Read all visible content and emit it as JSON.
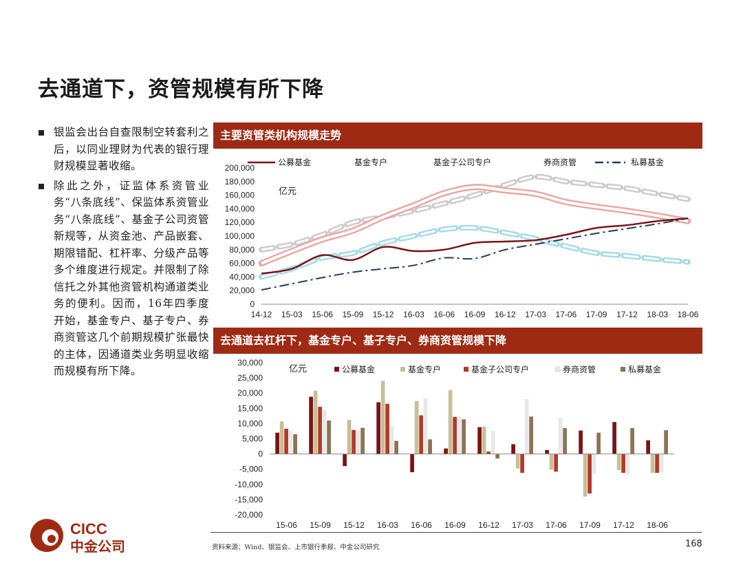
{
  "slide": {
    "title": "去通道下，资管规模有所下降",
    "bullets": [
      "银监会出台自查限制空转套利之后，以同业理财为代表的银行理财规模显著收缩。",
      "除此之外，证监体系资管业务“八条底线”、保监体系资管业务“八条底线”、基金子公司资管新规等，从资金池、产品嵌套、期限错配、杠杆率、分级产品等多个维度进行规定。并限制了除信托之外其他资管机构通道类业务的便利。因而，16年四季度开始，基金专户、基子专户、券商资管这几个前期规模扩张最快的主体，因通道类业务明显收缩而规模有所下降。"
    ],
    "source": "资料来源：Wind、银监会、上市银行季报、中金公司研究",
    "page_number": "168",
    "logo": {
      "text_en": "CICC",
      "text_cn": "中金公司"
    },
    "colors": {
      "header": "#9e2a14",
      "gongmu": "#7a1416",
      "jijinzhuanhu": "#c8bf97",
      "zigongsi": "#b33a2a",
      "quanshang": "#e8e8e8",
      "simu": "#8b7355",
      "simu_line": "#23395b",
      "jijinzhuanhu_line": "#e8a8a4",
      "zigongsi_line": "#a6dbe8",
      "quanshang_line": "#cccccc"
    }
  },
  "chart_data": [
    {
      "type": "line",
      "header": "主要资管类机构规模走势",
      "unit_label": "亿元",
      "x": [
        "14-12",
        "15-03",
        "15-06",
        "15-09",
        "15-12",
        "16-03",
        "16-06",
        "16-09",
        "16-12",
        "17-03",
        "17-06",
        "17-09",
        "17-12",
        "18-03",
        "18-06"
      ],
      "ylim": [
        0,
        200000
      ],
      "yticks": [
        "0",
        "20,000",
        "40,000",
        "60,000",
        "80,000",
        "100,000",
        "120,000",
        "140,000",
        "160,000",
        "180,000",
        "200,000"
      ],
      "legend_placement": "top",
      "series": [
        {
          "name": "公募基金",
          "values": [
            45000,
            52000,
            72000,
            65000,
            84000,
            78000,
            80000,
            90000,
            92000,
            94000,
            102000,
            112000,
            116000,
            122000,
            126000
          ]
        },
        {
          "name": "基金专户",
          "values": [
            60000,
            78000,
            95000,
            108000,
            128000,
            145000,
            163000,
            172000,
            167000,
            162000,
            150000,
            143000,
            137000,
            130000,
            122000
          ]
        },
        {
          "name": "基金子公司专户",
          "values": [
            40000,
            52000,
            68000,
            75000,
            90000,
            100000,
            110000,
            112000,
            105000,
            96000,
            85000,
            75000,
            71000,
            66000,
            62000
          ]
        },
        {
          "name": "券商资管",
          "values": [
            80000,
            88000,
            102000,
            120000,
            128000,
            137000,
            148000,
            160000,
            175000,
            187000,
            180000,
            175000,
            170000,
            162000,
            154000
          ]
        },
        {
          "name": "私募基金",
          "values": [
            21000,
            30000,
            39000,
            47000,
            52000,
            57000,
            68000,
            67000,
            80000,
            88000,
            96000,
            104000,
            111000,
            118000,
            126000
          ]
        }
      ]
    },
    {
      "type": "bar",
      "header": "去通道去杠杆下，基金专户、基子专户、券商资管规模下降",
      "unit_label": "亿元",
      "categories": [
        "15-06",
        "15-09",
        "15-12",
        "16-03",
        "16-06",
        "16-09",
        "16-12",
        "17-03",
        "17-06",
        "17-09",
        "17-12",
        "18-06"
      ],
      "ylim": [
        -20000,
        30000
      ],
      "yticks": [
        "-20,000",
        "-15,000",
        "-10,000",
        "-5,000",
        "0",
        "5,000",
        "10,000",
        "15,000",
        "20,000",
        "25,000",
        "30,000"
      ],
      "legend_placement": "top",
      "series": [
        {
          "name": "公募基金",
          "values": [
            7000,
            18800,
            -4000,
            17000,
            -6000,
            1800,
            8800,
            3200,
            1300,
            7700,
            10500,
            4500
          ]
        },
        {
          "name": "基金专户",
          "values": [
            10700,
            20800,
            11200,
            24000,
            17400,
            21000,
            9000,
            -4800,
            -5200,
            -14000,
            -5300,
            -6200
          ]
        },
        {
          "name": "基金子公司专户",
          "values": [
            8300,
            15500,
            7900,
            16500,
            12700,
            12200,
            800,
            -6200,
            -5800,
            -13000,
            -6200,
            -6200
          ]
        },
        {
          "name": "券商资管",
          "values": [
            7500,
            14500,
            7600,
            9200,
            18400,
            12300,
            7500,
            18000,
            11800,
            -6600,
            -6800,
            -6000
          ]
        },
        {
          "name": "私募基金",
          "values": [
            6500,
            11000,
            8600,
            4300,
            4800,
            11400,
            -1500,
            12300,
            8500,
            7000,
            8500,
            7800
          ]
        }
      ]
    }
  ]
}
